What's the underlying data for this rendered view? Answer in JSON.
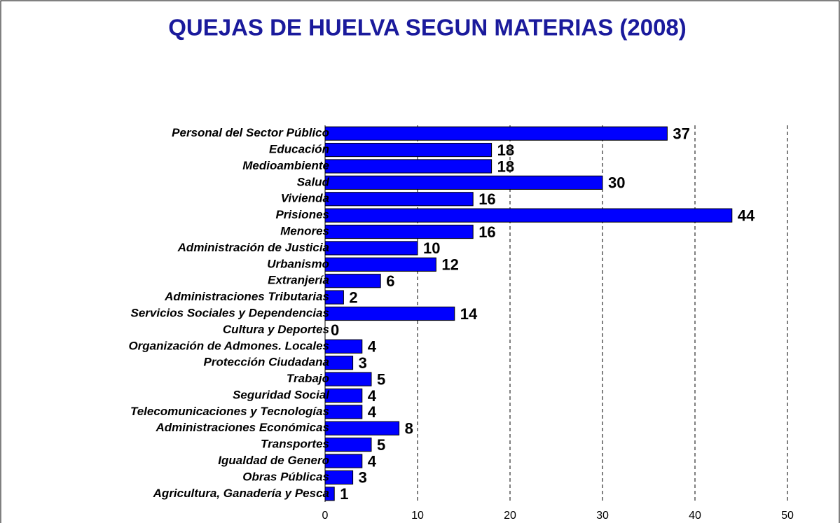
{
  "chart_data": {
    "type": "barh",
    "title": "QUEJAS DE HUELVA SEGUN MATERIAS (2008)",
    "categories": [
      "Personal del Sector Público",
      "Educación",
      "Medioambiente",
      "Salud",
      "Vivienda",
      "Prisiones",
      "Menores",
      "Administración de Justicia",
      "Urbanismo",
      "Extranjería",
      "Administraciones Tributarias",
      "Servicios Sociales y Dependencias",
      "Cultura y Deportes",
      "Organización de Admones. Locales",
      "Protección Ciudadana",
      "Trabajo",
      "Seguridad Social",
      "Telecomunicaciones y Tecnologías",
      "Administraciones Económicas",
      "Transportes",
      "Igualdad de Genero",
      "Obras Públicas",
      "Agricultura, Ganadería y Pesca"
    ],
    "values": [
      37,
      18,
      18,
      30,
      16,
      44,
      16,
      10,
      12,
      6,
      2,
      14,
      0,
      4,
      3,
      5,
      4,
      4,
      8,
      5,
      4,
      3,
      1
    ],
    "color": "#0000ff",
    "xlim": [
      0,
      50
    ],
    "xticks": [
      0,
      10,
      20,
      30,
      40,
      50
    ],
    "grid": true
  }
}
